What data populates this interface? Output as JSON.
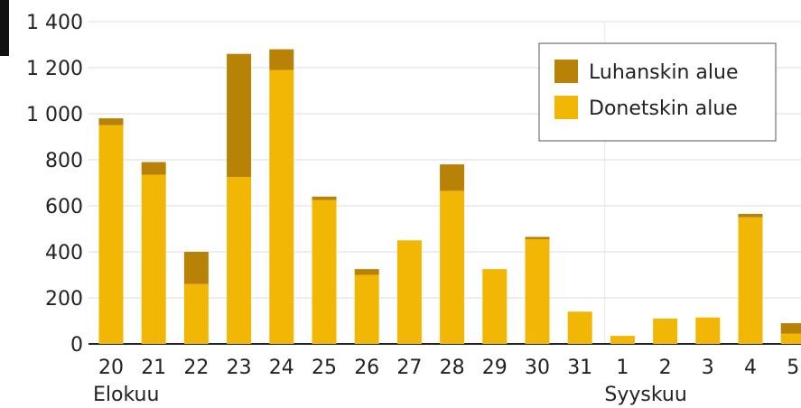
{
  "chart_data": {
    "type": "bar",
    "stacked": true,
    "categories": [
      "20",
      "21",
      "22",
      "23",
      "24",
      "25",
      "26",
      "27",
      "28",
      "29",
      "30",
      "31",
      "1",
      "2",
      "3",
      "4",
      "5"
    ],
    "month_labels": [
      {
        "label": "Elokuu",
        "at_category": "20"
      },
      {
        "label": "Syyskuu",
        "at_category": "1"
      }
    ],
    "series": [
      {
        "name": "Donetskin alue",
        "color": "#f2b705",
        "values": [
          950,
          735,
          260,
          725,
          1190,
          625,
          300,
          450,
          665,
          325,
          455,
          140,
          35,
          110,
          115,
          550,
          45
        ]
      },
      {
        "name": "Luhanskin alue",
        "color": "#b88207",
        "values": [
          30,
          55,
          140,
          535,
          90,
          15,
          25,
          0,
          115,
          0,
          10,
          0,
          0,
          0,
          0,
          15,
          45
        ]
      }
    ],
    "legend_order": [
      "Luhanskin alue",
      "Donetskin alue"
    ],
    "ylim": [
      0,
      1400
    ],
    "yticks": [
      0,
      200,
      400,
      600,
      800,
      1000,
      1200,
      1400
    ],
    "ytick_labels": [
      "0",
      "200",
      "400",
      "600",
      "800",
      "1 000",
      "1 200",
      "1 400"
    ],
    "grid": true,
    "legend_position": "top-right"
  }
}
